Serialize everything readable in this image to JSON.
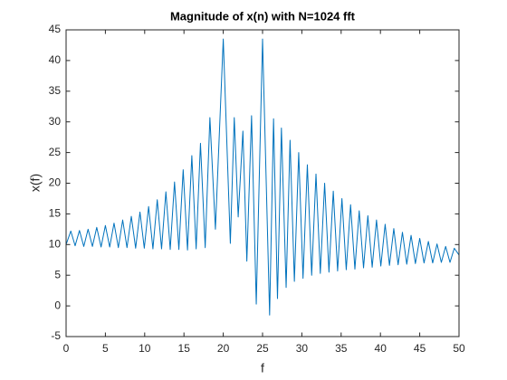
{
  "chart_data": {
    "type": "line",
    "title": "Magnitude of x(n) with N=1024 fft",
    "x_label": "f",
    "y_label": "x(f)",
    "xlim": [
      0,
      50
    ],
    "ylim": [
      -5,
      45
    ],
    "xticks": [
      0,
      5,
      10,
      15,
      20,
      25,
      30,
      35,
      40,
      45,
      50
    ],
    "yticks": [
      -5,
      0,
      5,
      10,
      15,
      20,
      25,
      30,
      35,
      40,
      45
    ],
    "color": "#0072bd",
    "x": [
      0,
      0.6,
      1.15,
      1.7,
      2.25,
      2.8,
      3.35,
      3.9,
      4.45,
      5.0,
      5.55,
      6.1,
      6.65,
      7.2,
      7.75,
      8.3,
      8.85,
      9.4,
      9.95,
      10.5,
      11.05,
      11.6,
      12.15,
      12.7,
      13.25,
      13.8,
      14.35,
      14.9,
      15.45,
      16.0,
      16.55,
      17.1,
      17.7,
      18.3,
      19.0,
      20.0,
      20.9,
      21.4,
      21.9,
      22.5,
      23.0,
      23.6,
      24.2,
      25.0,
      25.9,
      26.4,
      26.9,
      27.4,
      28.0,
      28.5,
      29.05,
      29.6,
      30.15,
      30.7,
      31.25,
      31.8,
      32.35,
      32.9,
      33.45,
      34.0,
      34.55,
      35.1,
      35.65,
      36.2,
      36.75,
      37.3,
      37.85,
      38.4,
      38.95,
      39.5,
      40.05,
      40.6,
      41.15,
      41.7,
      42.25,
      42.8,
      43.35,
      43.9,
      44.45,
      45.0,
      45.55,
      46.1,
      46.65,
      47.2,
      47.75,
      48.3,
      48.85,
      49.4,
      50.0
    ],
    "values": [
      10,
      12.2,
      9.8,
      12.3,
      9.7,
      12.5,
      9.7,
      12.8,
      9.6,
      13.1,
      9.6,
      13.5,
      9.5,
      14,
      9.5,
      14.6,
      9.4,
      15.3,
      9.4,
      16.2,
      9.3,
      17.3,
      9.3,
      18.6,
      9.2,
      20.2,
      9.2,
      22.2,
      9.1,
      24.5,
      9.3,
      26.5,
      9.5,
      30.7,
      12.5,
      43.5,
      10.2,
      30.7,
      14.5,
      28.5,
      7.3,
      31,
      0.3,
      43.5,
      -1.5,
      30.5,
      1.2,
      29,
      3,
      27,
      4,
      25,
      4.5,
      23,
      5,
      21.5,
      5.3,
      20,
      5.5,
      18.7,
      5.7,
      17.5,
      5.9,
      16.5,
      6,
      15.5,
      6.2,
      14.7,
      6.3,
      14,
      6.5,
      13.3,
      6.6,
      12.6,
      6.7,
      12,
      6.8,
      11.5,
      6.9,
      11,
      7,
      10.5,
      7,
      10.1,
      7.1,
      9.7,
      7.1,
      9.4,
      8.3
    ]
  }
}
